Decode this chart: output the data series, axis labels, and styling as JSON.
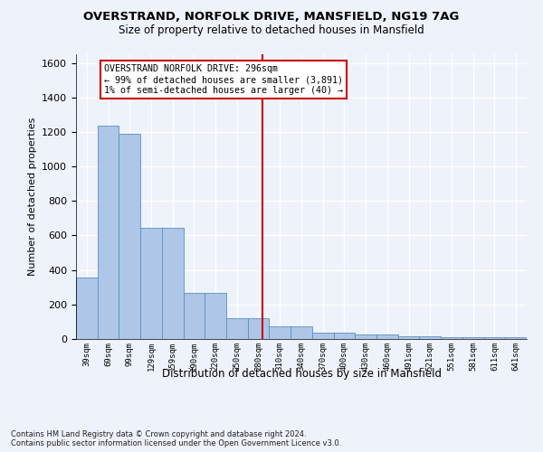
{
  "title_line1": "OVERSTRAND, NORFOLK DRIVE, MANSFIELD, NG19 7AG",
  "title_line2": "Size of property relative to detached houses in Mansfield",
  "xlabel": "Distribution of detached houses by size in Mansfield",
  "ylabel": "Number of detached properties",
  "footnote": "Contains HM Land Registry data © Crown copyright and database right 2024.\nContains public sector information licensed under the Open Government Licence v3.0.",
  "categories": [
    "39sqm",
    "69sqm",
    "99sqm",
    "129sqm",
    "159sqm",
    "190sqm",
    "220sqm",
    "250sqm",
    "280sqm",
    "310sqm",
    "340sqm",
    "370sqm",
    "400sqm",
    "430sqm",
    "460sqm",
    "491sqm",
    "521sqm",
    "551sqm",
    "581sqm",
    "611sqm",
    "641sqm"
  ],
  "values": [
    355,
    1235,
    1190,
    645,
    645,
    265,
    265,
    120,
    120,
    75,
    75,
    35,
    35,
    25,
    25,
    18,
    18,
    10,
    10,
    10,
    10
  ],
  "bar_color": "#aec6e8",
  "bar_edge_color": "#5a8fc2",
  "vline_x_index": 8.7,
  "vline_color": "#cc0000",
  "annotation_text": "OVERSTRAND NORFOLK DRIVE: 296sqm\n← 99% of detached houses are smaller (3,891)\n1% of semi-detached houses are larger (40) →",
  "annotation_box_color": "#cc0000",
  "ylim": [
    0,
    1650
  ],
  "yticks": [
    0,
    200,
    400,
    600,
    800,
    1000,
    1200,
    1400,
    1600
  ],
  "background_color": "#eef2fa",
  "grid_color": "#ffffff"
}
